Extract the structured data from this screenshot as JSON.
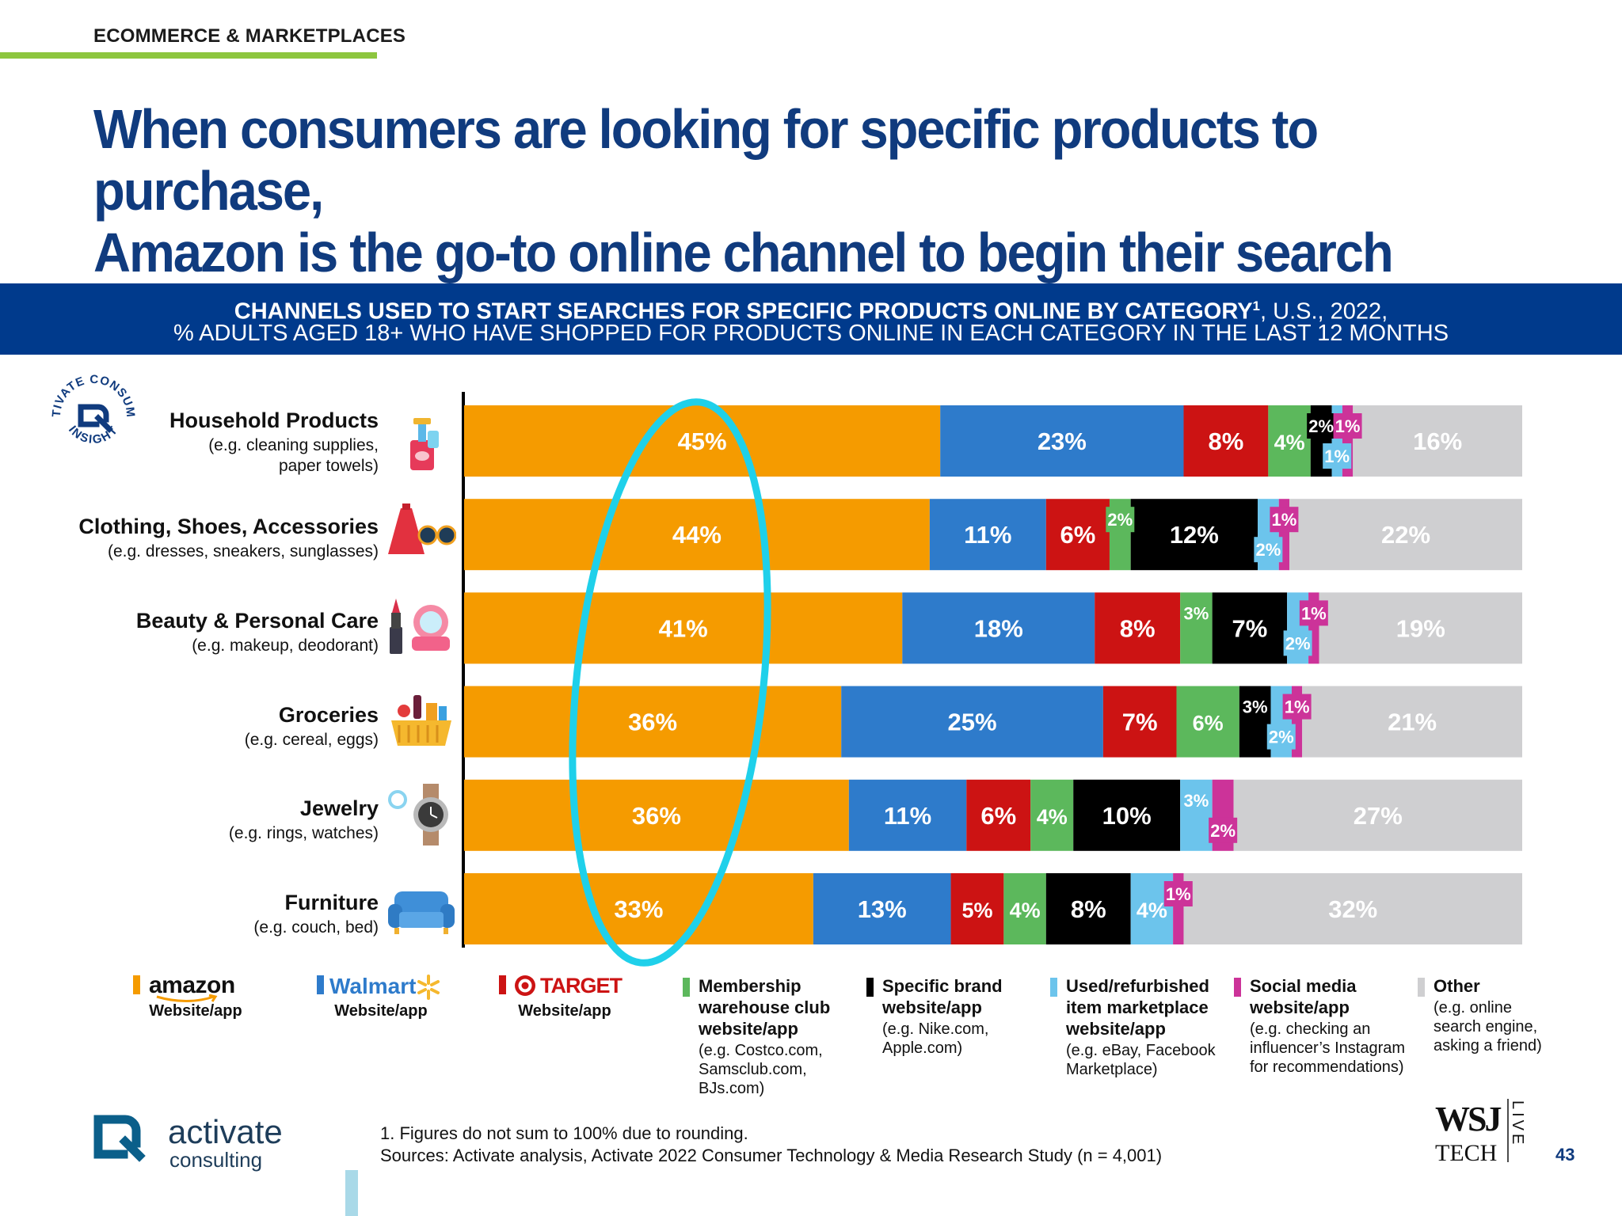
{
  "section_label": "ECOMMERCE & MARKETPLACES",
  "headline": {
    "line1": "When consumers are looking for specific products to purchase,",
    "line2": "Amazon is the go-to online channel to begin their search"
  },
  "banner": {
    "line1_bold": "CHANNELS USED TO START SEARCHES FOR SPECIFIC PRODUCTS ONLINE BY CATEGORY",
    "line1_sup": "1",
    "line1_rest": ", U.S., 2022,",
    "line2": "% ADULTS AGED 18+ WHO HAVE SHOPPED FOR PRODUCTS ONLINE IN EACH CATEGORY IN THE LAST 12 MONTHS"
  },
  "colors": {
    "amazon": "#f59b00",
    "walmart": "#2e7bcb",
    "target": "#cc1313",
    "membership": "#5cb85c",
    "brand": "#000000",
    "used": "#6cc4ec",
    "social": "#cc3399",
    "other": "#cfcfd1",
    "highlight_ring": "#1fd0ea"
  },
  "categories_meta": [
    {
      "name": "Household Products",
      "sub1": "(e.g. cleaning supplies,",
      "sub2": "paper towels)",
      "icon": "cleaning-supplies-icon"
    },
    {
      "name": "Clothing, Shoes, Accessories",
      "sub1": "(e.g. dresses, sneakers, sunglasses)",
      "sub2": "",
      "icon": "dress-sunglasses-icon"
    },
    {
      "name": "Beauty & Personal Care",
      "sub1": "(e.g. makeup, deodorant)",
      "sub2": "",
      "icon": "makeup-icon"
    },
    {
      "name": "Groceries",
      "sub1": "(e.g. cereal, eggs)",
      "sub2": "",
      "icon": "grocery-basket-icon"
    },
    {
      "name": "Jewelry",
      "sub1": "(e.g. rings, watches)",
      "sub2": "",
      "icon": "watch-ring-icon"
    },
    {
      "name": "Furniture",
      "sub1": "(e.g. couch, bed)",
      "sub2": "",
      "icon": "couch-icon"
    }
  ],
  "chart_data": {
    "type": "bar",
    "orientation": "horizontal",
    "stacked": true,
    "categories": [
      "Household Products",
      "Clothing, Shoes, Accessories",
      "Beauty & Personal Care",
      "Groceries",
      "Jewelry",
      "Furniture"
    ],
    "series": [
      {
        "name": "Amazon Website/app",
        "values": [
          45,
          44,
          41,
          36,
          36,
          33
        ]
      },
      {
        "name": "Walmart Website/app",
        "values": [
          23,
          11,
          18,
          25,
          11,
          13
        ]
      },
      {
        "name": "TARGET Website/app",
        "values": [
          8,
          6,
          8,
          7,
          6,
          5
        ]
      },
      {
        "name": "Membership warehouse club website/app",
        "values": [
          4,
          2,
          3,
          6,
          4,
          4
        ]
      },
      {
        "name": "Specific brand website/app",
        "values": [
          2,
          12,
          7,
          3,
          10,
          8
        ]
      },
      {
        "name": "Used/refurbished item marketplace website/app",
        "values": [
          1,
          2,
          2,
          2,
          3,
          4
        ]
      },
      {
        "name": "Social media website/app",
        "values": [
          1,
          1,
          1,
          1,
          2,
          1
        ]
      },
      {
        "name": "Other",
        "values": [
          16,
          22,
          19,
          21,
          27,
          32
        ]
      }
    ],
    "value_suffix": "%",
    "legend_position": "bottom"
  },
  "legend": {
    "amazon": {
      "brand": "amazon",
      "caption": "Website/app"
    },
    "walmart": {
      "brand": "Walmart",
      "caption": "Website/app"
    },
    "target": {
      "brand": "TARGET",
      "caption": "Website/app"
    },
    "membership": {
      "title1": "Membership",
      "title2": "warehouse club",
      "title3": "website/app",
      "sub1": "(e.g. Costco.com,",
      "sub2": "Samsclub.com,",
      "sub3": "BJs.com)"
    },
    "brand_site": {
      "title1": "Specific brand",
      "title2": "website/app",
      "sub1": "(e.g. Nike.com,",
      "sub2": "Apple.com)"
    },
    "used": {
      "title1": "Used/refurbished",
      "title2": "item marketplace",
      "title3": "website/app",
      "sub1": "(e.g. eBay, Facebook",
      "sub2": "Marketplace)"
    },
    "social": {
      "title1": "Social media",
      "title2": "website/app",
      "sub1": "(e.g. checking an",
      "sub2": "influencer’s Instagram",
      "sub3": "for recommendations)"
    },
    "other": {
      "title1": "Other",
      "sub1": "(e.g. online",
      "sub2": "search engine,",
      "sub3": "asking a friend)"
    }
  },
  "footnote": {
    "line1": "1. Figures do not sum to 100% due to rounding.",
    "line2": "Sources: Activate analysis, Activate 2022 Consumer Technology & Media Research Study (n = 4,001)"
  },
  "badge": {
    "text_top": "ACTIVATE CONSUMER",
    "text_bottom": "INSIGHT"
  },
  "logo": {
    "word": "activate",
    "sub": "consulting"
  },
  "wsj": {
    "top": "WSJ",
    "bottom": "TECH",
    "side": "LIVE"
  },
  "page_number": "43"
}
